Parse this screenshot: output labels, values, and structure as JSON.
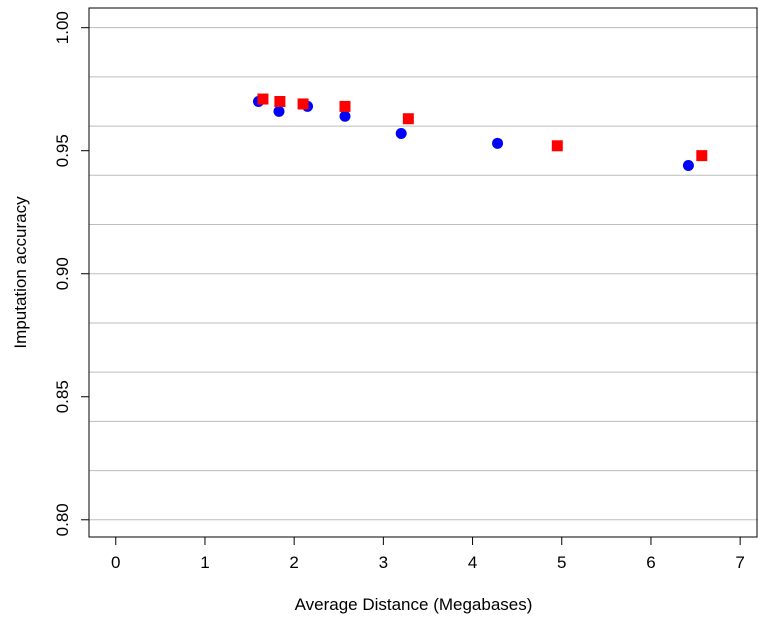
{
  "chart_data": {
    "type": "scatter",
    "title": "",
    "xlabel": "Average Distance (Megabases)",
    "ylabel": "Imputation accuracy",
    "xlim": [
      -0.3,
      7.2
    ],
    "ylim": [
      0.793,
      1.008
    ],
    "x_ticks": [
      0,
      1,
      2,
      3,
      4,
      5,
      6,
      7
    ],
    "x_tick_labels": [
      "0",
      "1",
      "2",
      "3",
      "4",
      "5",
      "6",
      "7"
    ],
    "y_ticks": [
      0.8,
      0.85,
      0.9,
      0.95,
      1.0
    ],
    "y_tick_labels": [
      "0.80",
      "0.85",
      "0.90",
      "0.95",
      "1.00"
    ],
    "grid_y": [
      0.8,
      0.82,
      0.84,
      0.86,
      0.88,
      0.9,
      0.92,
      0.94,
      0.96,
      0.98,
      1.0
    ],
    "grid": true,
    "series": [
      {
        "marker": "circle",
        "color": "#0000ff",
        "x": [
          1.6,
          1.83,
          2.15,
          2.57,
          3.2,
          4.28,
          6.42
        ],
        "y": [
          0.97,
          0.966,
          0.968,
          0.964,
          0.957,
          0.953,
          0.944
        ]
      },
      {
        "marker": "square",
        "color": "#ff0000",
        "x": [
          1.65,
          1.84,
          2.1,
          2.57,
          3.28,
          4.95,
          6.57
        ],
        "y": [
          0.971,
          0.97,
          0.969,
          0.968,
          0.963,
          0.952,
          0.948
        ]
      }
    ]
  }
}
